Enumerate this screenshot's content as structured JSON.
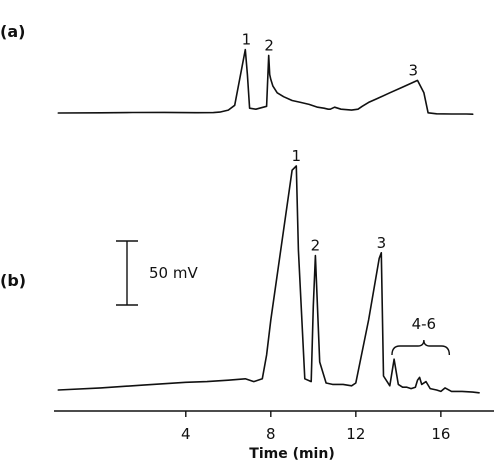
{
  "chart_data": [
    {
      "type": "line",
      "panel_label": "(a)",
      "xlabel": "",
      "ylabel": "",
      "x_unit": "min",
      "xlim": [
        -2.2,
        18.5
      ],
      "series": [
        {
          "x": [
            -2.0,
            0.0,
            1.5,
            3.0,
            4.5,
            5.3,
            5.6,
            6.0,
            6.3,
            6.8,
            6.9,
            7.0,
            7.3,
            7.8,
            7.9,
            7.95,
            8.0,
            8.1,
            8.3,
            8.6,
            9.0,
            9.4,
            9.8,
            10.2,
            10.5,
            10.7,
            10.8,
            11.0,
            11.3,
            11.8,
            12.1,
            12.3,
            12.6,
            13.0,
            13.6,
            14.2,
            14.9,
            15.2,
            15.4,
            15.8,
            16.5,
            17.2,
            17.5
          ],
          "y": [
            0.0,
            0.2,
            0.5,
            0.6,
            0.3,
            0.4,
            0.9,
            3.0,
            8.0,
            66.0,
            40.0,
            5.0,
            4.0,
            7.0,
            60.0,
            40.0,
            35.0,
            28.0,
            21.0,
            17.0,
            13.0,
            11.0,
            9.0,
            6.0,
            5.0,
            4.0,
            4.0,
            6.0,
            4.0,
            3.0,
            4.0,
            7.0,
            11.0,
            15.0,
            21.0,
            27.0,
            34.0,
            21.0,
            0.2,
            -0.8,
            -1.0,
            -1.0,
            -1.2
          ]
        }
      ],
      "annotations": [
        {
          "text": "1",
          "x": 6.85,
          "y": 66.0
        },
        {
          "text": "2",
          "x": 7.92,
          "y": 60.0
        },
        {
          "text": "3",
          "x": 14.7,
          "y": 34.0
        }
      ]
    },
    {
      "type": "line",
      "panel_label": "(b)",
      "xlabel": "Time (min)",
      "ylabel": "",
      "x_unit": "min",
      "xlim": [
        -2.2,
        18.5
      ],
      "xticks": [
        4,
        8,
        12,
        16
      ],
      "scale_bar": {
        "label": "50 mV",
        "value_mV": 50
      },
      "series": [
        {
          "x": [
            -2.0,
            0.0,
            2.0,
            4.0,
            5.0,
            6.0,
            6.8,
            7.2,
            7.6,
            7.8,
            8.0,
            9.0,
            9.2,
            9.3,
            9.6,
            9.9,
            10.0,
            10.1,
            10.3,
            10.6,
            10.9,
            11.4,
            11.8,
            12.0,
            12.6,
            13.1,
            13.2,
            13.3,
            13.6,
            13.8,
            14.0,
            14.2,
            14.4,
            14.6,
            14.8,
            14.9,
            15.0,
            15.1,
            15.3,
            15.5,
            15.8,
            16.0,
            16.2,
            16.5,
            17.0,
            17.5,
            17.8
          ],
          "y": [
            0.0,
            1.5,
            3.5,
            5.5,
            6.0,
            7.0,
            8.0,
            6.0,
            8.0,
            25.0,
            50.0,
            157.0,
            160.0,
            100.0,
            8.0,
            6.0,
            60.0,
            96.0,
            20.0,
            5.0,
            4.0,
            4.0,
            3.0,
            5.0,
            50.0,
            94.0,
            98.0,
            10.0,
            3.0,
            22.0,
            4.0,
            2.0,
            2.0,
            1.0,
            2.0,
            7.0,
            9.0,
            4.0,
            6.0,
            1.0,
            0.0,
            -1.0,
            1.5,
            -1.0,
            -1.0,
            -1.5,
            -2.0
          ]
        }
      ],
      "annotations": [
        {
          "text": "1",
          "x": 9.2,
          "y": 160.0
        },
        {
          "text": "2",
          "x": 10.1,
          "y": 96.0
        },
        {
          "text": "3",
          "x": 13.2,
          "y": 98.0
        },
        {
          "text": "4-6",
          "x": 15.2,
          "y": 40.0,
          "bracket_x": [
            13.7,
            16.4
          ]
        }
      ]
    }
  ]
}
